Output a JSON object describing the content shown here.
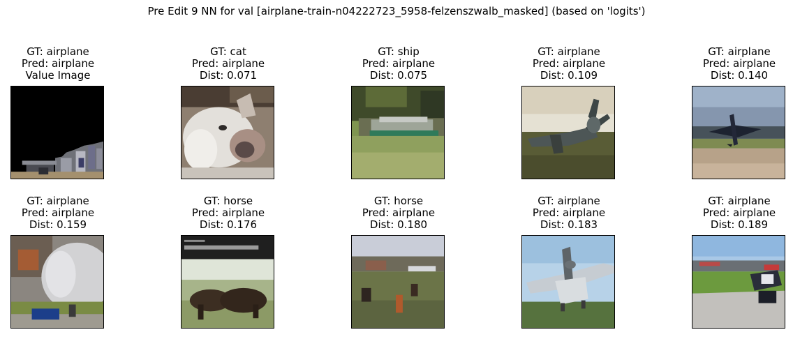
{
  "figure": {
    "title": "Pre Edit 9 NN for val [airplane-train-n04222723_5958-felzenszwalb_masked] (based on 'logits')"
  },
  "panels": [
    {
      "gt": "GT: airplane",
      "pred": "Pred: airplane",
      "info": "Value Image",
      "image": "masked query image, mostly black with partial airplane scene at bottom"
    },
    {
      "gt": "GT: cat",
      "pred": "Pred: airplane",
      "info": "Dist: 0.071",
      "image": "close-up of a white cat"
    },
    {
      "gt": "GT: ship",
      "pred": "Pred: airplane",
      "info": "Dist: 0.075",
      "image": "boat on a green river"
    },
    {
      "gt": "GT: airplane",
      "pred": "Pred: airplane",
      "info": "Dist: 0.109",
      "image": "propeller airplane on grass"
    },
    {
      "gt": "GT: airplane",
      "pred": "Pred: airplane",
      "info": "Dist: 0.140",
      "image": "propeller airplane on runway"
    },
    {
      "gt": "GT: airplane",
      "pred": "Pred: airplane",
      "info": "Dist: 0.159",
      "image": "nose of a large airliner with a blue vehicle"
    },
    {
      "gt": "GT: horse",
      "pred": "Pred: airplane",
      "info": "Dist: 0.176",
      "image": "book cover with horses in a field"
    },
    {
      "gt": "GT: horse",
      "pred": "Pred: airplane",
      "info": "Dist: 0.180",
      "image": "horses in a field"
    },
    {
      "gt": "GT: airplane",
      "pred": "Pred: airplane",
      "info": "Dist: 0.183",
      "image": "seaplane on grass under blue sky"
    },
    {
      "gt": "GT: airplane",
      "pred": "Pred: airplane",
      "info": "Dist: 0.189",
      "image": "small airplane on tarmac"
    }
  ]
}
